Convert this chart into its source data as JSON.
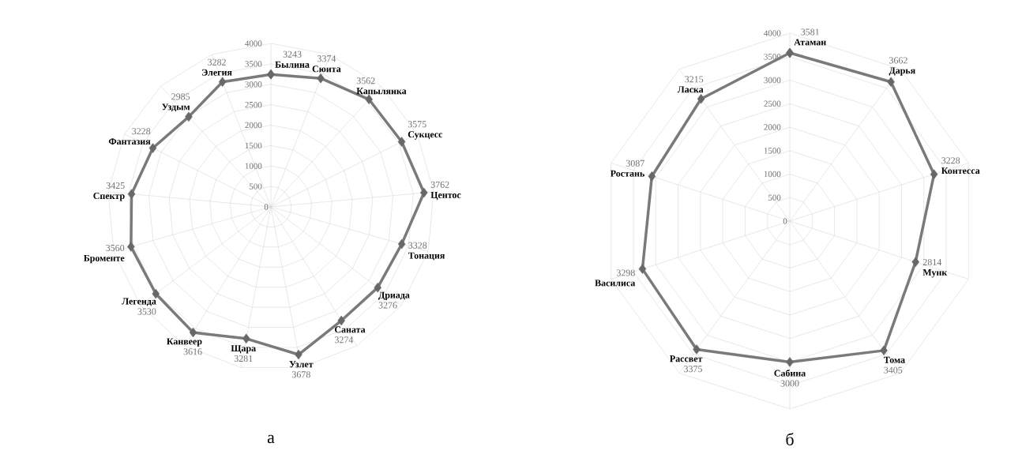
{
  "chart_data": [
    {
      "type": "radar",
      "categories": [
        "Былина",
        "Сюита",
        "Капылянка",
        "Сукцесс",
        "Центос",
        "Тонация",
        "Дриада",
        "Саната",
        "Узлет",
        "Щара",
        "Канвеер",
        "Легенда",
        "Броменте",
        "Спектр",
        "Фантазия",
        "Уздым",
        "Элегия"
      ],
      "series": [
        {
          "color": "#7a7a7a",
          "values": [
            3243,
            3374,
            3562,
            3575,
            3762,
            3328,
            3276,
            3274,
            3678,
            3281,
            3616,
            3530,
            3560,
            3425,
            3228,
            2985,
            3282
          ]
        }
      ],
      "ylim": [
        0,
        4000
      ],
      "yticks": [
        0,
        500,
        1000,
        1500,
        2000,
        2500,
        3000,
        3500,
        4000
      ],
      "grid": true,
      "marker": "diamond",
      "data_labels": true,
      "annotations": [
        "а"
      ]
    },
    {
      "type": "radar",
      "categories": [
        "Атаман",
        "Дарья",
        "Контесса",
        "Мунк",
        "Тома",
        "Сабина",
        "Рассвет",
        "Василиса",
        "Ростань",
        "Ласка"
      ],
      "series": [
        {
          "color": "#7a7a7a",
          "values": [
            3581,
            3662,
            3228,
            2814,
            3405,
            3000,
            3375,
            3298,
            3087,
            3215
          ]
        }
      ],
      "ylim": [
        0,
        4000
      ],
      "yticks": [
        0,
        500,
        1000,
        1500,
        2000,
        2500,
        3000,
        3500,
        4000
      ],
      "grid": true,
      "marker": "diamond",
      "data_labels": true,
      "annotations": [
        "б"
      ]
    }
  ]
}
